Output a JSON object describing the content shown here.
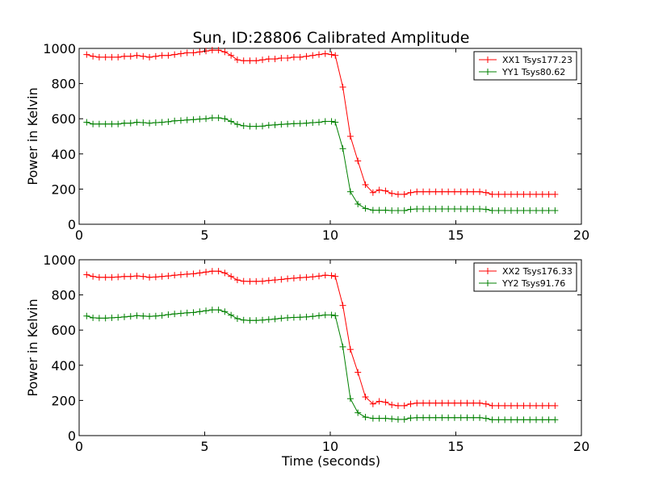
{
  "figure": {
    "title": "Sun, ID:28806 Calibrated Amplitude",
    "xlabel": "Time (seconds)"
  },
  "chart_data": [
    {
      "type": "line",
      "title": "Sun, ID:28806 Calibrated Amplitude",
      "xlabel": "",
      "ylabel": "Power in Kelvin",
      "xlim": [
        0,
        20
      ],
      "ylim": [
        0,
        1000
      ],
      "xticks": [
        0,
        5,
        10,
        15,
        20
      ],
      "yticks": [
        0,
        200,
        400,
        600,
        800,
        1000
      ],
      "legend_position": "top-right",
      "grid": false,
      "x": [
        0.3,
        0.55,
        0.8,
        1.05,
        1.3,
        1.55,
        1.8,
        2.05,
        2.3,
        2.55,
        2.8,
        3.05,
        3.3,
        3.55,
        3.8,
        4.05,
        4.3,
        4.55,
        4.8,
        5.05,
        5.3,
        5.55,
        5.8,
        6.05,
        6.3,
        6.55,
        6.8,
        7.05,
        7.3,
        7.55,
        7.8,
        8.05,
        8.3,
        8.55,
        8.8,
        9.05,
        9.3,
        9.55,
        9.8,
        10.05,
        10.2,
        10.5,
        10.8,
        11.1,
        11.4,
        11.7,
        11.95,
        12.2,
        12.45,
        12.7,
        12.95,
        13.2,
        13.45,
        13.7,
        13.95,
        14.2,
        14.45,
        14.7,
        14.95,
        15.2,
        15.45,
        15.7,
        15.95,
        16.2,
        16.45,
        16.7,
        16.95,
        17.2,
        17.45,
        17.7,
        17.95,
        18.2,
        18.45,
        18.7,
        18.95
      ],
      "series": [
        {
          "name": "XX1 Tsys177.23",
          "color": "#ff0000",
          "values": [
            965,
            955,
            950,
            950,
            950,
            950,
            955,
            955,
            960,
            955,
            950,
            955,
            960,
            960,
            965,
            970,
            975,
            975,
            980,
            985,
            990,
            990,
            980,
            960,
            935,
            930,
            930,
            930,
            935,
            940,
            940,
            945,
            945,
            950,
            950,
            955,
            960,
            965,
            970,
            965,
            960,
            780,
            500,
            360,
            225,
            180,
            195,
            190,
            175,
            170,
            170,
            180,
            185,
            185,
            185,
            185,
            185,
            185,
            185,
            185,
            185,
            185,
            185,
            180,
            170,
            170,
            170,
            170,
            170,
            170,
            170,
            170,
            170,
            170,
            170
          ]
        },
        {
          "name": "YY1 Tsys80.62",
          "color": "#008000",
          "values": [
            580,
            570,
            570,
            570,
            570,
            570,
            575,
            575,
            580,
            578,
            575,
            578,
            580,
            583,
            588,
            590,
            593,
            595,
            598,
            600,
            605,
            605,
            600,
            585,
            568,
            560,
            557,
            557,
            558,
            563,
            565,
            568,
            570,
            572,
            573,
            575,
            578,
            580,
            585,
            585,
            580,
            430,
            185,
            115,
            90,
            80,
            80,
            80,
            78,
            78,
            78,
            85,
            87,
            87,
            87,
            87,
            87,
            87,
            87,
            87,
            87,
            87,
            87,
            85,
            78,
            78,
            78,
            78,
            78,
            78,
            78,
            78,
            78,
            78,
            78
          ]
        }
      ]
    },
    {
      "type": "line",
      "title": "",
      "xlabel": "Time (seconds)",
      "ylabel": "Power in Kelvin",
      "xlim": [
        0,
        20
      ],
      "ylim": [
        0,
        1000
      ],
      "xticks": [
        0,
        5,
        10,
        15,
        20
      ],
      "yticks": [
        0,
        200,
        400,
        600,
        800,
        1000
      ],
      "legend_position": "top-right",
      "grid": false,
      "x": [
        0.3,
        0.55,
        0.8,
        1.05,
        1.3,
        1.55,
        1.8,
        2.05,
        2.3,
        2.55,
        2.8,
        3.05,
        3.3,
        3.55,
        3.8,
        4.05,
        4.3,
        4.55,
        4.8,
        5.05,
        5.3,
        5.55,
        5.8,
        6.05,
        6.3,
        6.55,
        6.8,
        7.05,
        7.3,
        7.55,
        7.8,
        8.05,
        8.3,
        8.55,
        8.8,
        9.05,
        9.3,
        9.55,
        9.8,
        10.05,
        10.2,
        10.5,
        10.8,
        11.1,
        11.4,
        11.7,
        11.95,
        12.2,
        12.45,
        12.7,
        12.95,
        13.2,
        13.45,
        13.7,
        13.95,
        14.2,
        14.45,
        14.7,
        14.95,
        15.2,
        15.45,
        15.7,
        15.95,
        16.2,
        16.45,
        16.7,
        16.95,
        17.2,
        17.45,
        17.7,
        17.95,
        18.2,
        18.45,
        18.7,
        18.95
      ],
      "series": [
        {
          "name": "XX2 Tsys176.33",
          "color": "#ff0000",
          "values": [
            915,
            905,
            900,
            900,
            900,
            902,
            905,
            905,
            908,
            905,
            900,
            902,
            905,
            908,
            912,
            915,
            918,
            920,
            925,
            930,
            935,
            935,
            925,
            905,
            885,
            878,
            877,
            877,
            878,
            882,
            885,
            888,
            892,
            895,
            898,
            900,
            903,
            907,
            912,
            910,
            905,
            740,
            490,
            360,
            220,
            180,
            195,
            190,
            175,
            170,
            170,
            180,
            185,
            185,
            185,
            185,
            185,
            185,
            185,
            185,
            185,
            185,
            185,
            180,
            170,
            170,
            170,
            170,
            170,
            170,
            170,
            170,
            170,
            170,
            170
          ]
        },
        {
          "name": "YY2 Tsys91.76",
          "color": "#008000",
          "values": [
            680,
            670,
            668,
            668,
            670,
            672,
            675,
            678,
            682,
            680,
            678,
            680,
            683,
            688,
            692,
            695,
            698,
            700,
            705,
            710,
            715,
            715,
            705,
            685,
            665,
            657,
            655,
            655,
            657,
            660,
            663,
            667,
            670,
            672,
            673,
            675,
            678,
            682,
            686,
            686,
            682,
            505,
            210,
            130,
            105,
            98,
            98,
            98,
            95,
            92,
            92,
            100,
            102,
            102,
            102,
            102,
            102,
            102,
            102,
            102,
            102,
            102,
            102,
            98,
            90,
            90,
            90,
            90,
            90,
            90,
            90,
            90,
            90,
            90,
            90
          ]
        }
      ]
    }
  ]
}
